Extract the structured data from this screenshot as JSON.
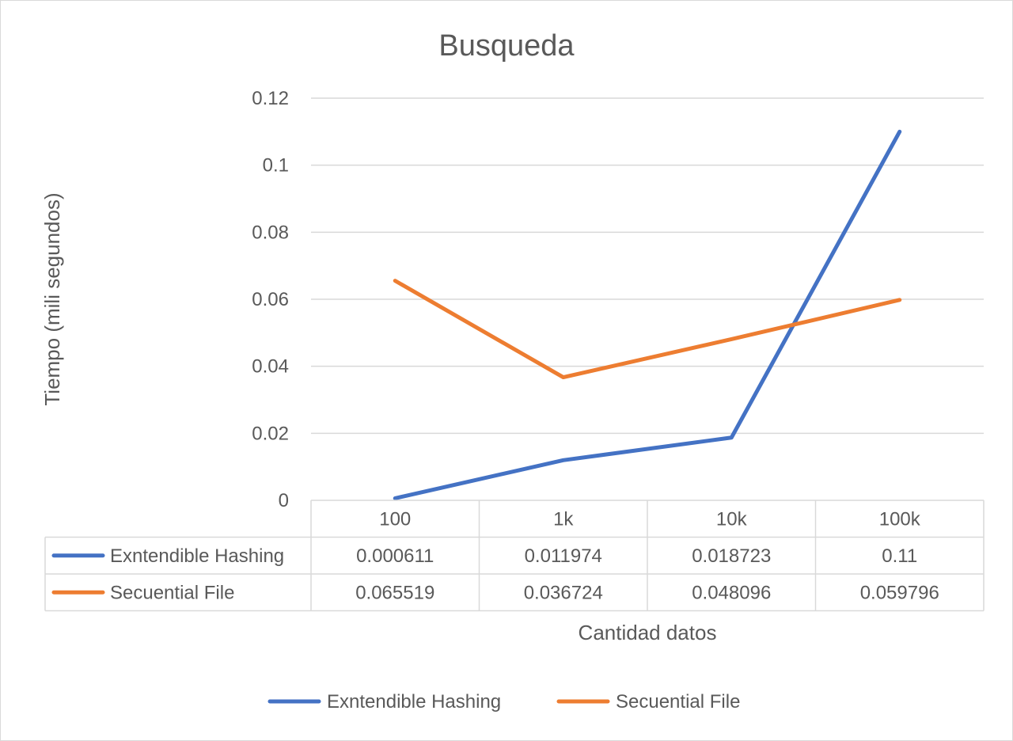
{
  "chart_data": {
    "type": "line",
    "title": "Busqueda",
    "xlabel": "Cantidad datos",
    "ylabel": "Tiempo (mili segundos)",
    "categories": [
      "100",
      "1k",
      "10k",
      "100k"
    ],
    "ylim": [
      0,
      0.12
    ],
    "yticks": [
      "0",
      "0.02",
      "0.04",
      "0.06",
      "0.08",
      "0.1",
      "0.12"
    ],
    "grid": true,
    "legend_position": "bottom",
    "data_table": true,
    "series": [
      {
        "name": "Exntendible Hashing",
        "color": "#4472c4",
        "values": [
          0.000611,
          0.011974,
          0.018723,
          0.11
        ],
        "labels": [
          "0.000611",
          "0.011974",
          "0.018723",
          "0.11"
        ]
      },
      {
        "name": "Secuential File",
        "color": "#ed7d31",
        "values": [
          0.065519,
          0.036724,
          0.048096,
          0.059796
        ],
        "labels": [
          "0.065519",
          "0.036724",
          "0.048096",
          "0.059796"
        ]
      }
    ]
  }
}
